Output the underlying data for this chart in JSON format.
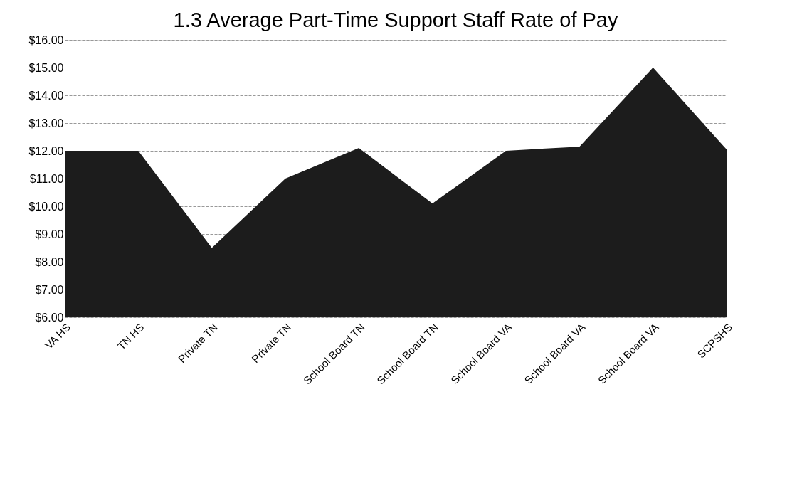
{
  "chart_data": {
    "type": "area",
    "title": "1.3 Average Part-Time Support Staff Rate of Pay",
    "categories": [
      "VA HS",
      "TN HS",
      "Private TN",
      "Private TN",
      "School Board TN",
      "School Board TN",
      "School Board VA",
      "School Board VA",
      "School Board VA",
      "SCPSHS"
    ],
    "series": [
      {
        "color": "#1c1c1c",
        "values": [
          12.0,
          12.0,
          8.5,
          11.0,
          12.1,
          10.1,
          12.0,
          12.15,
          15.0,
          12.05
        ]
      }
    ],
    "ylim": [
      6,
      16
    ],
    "yticks": [
      {
        "value": 6,
        "label": "$6.00"
      },
      {
        "value": 7,
        "label": "$7.00"
      },
      {
        "value": 8,
        "label": "$8.00"
      },
      {
        "value": 9,
        "label": "$9.00"
      },
      {
        "value": 10,
        "label": "$10.00"
      },
      {
        "value": 11,
        "label": "$11.00"
      },
      {
        "value": 12,
        "label": "$12.00"
      },
      {
        "value": 13,
        "label": "$13.00"
      },
      {
        "value": 14,
        "label": "$14.00"
      },
      {
        "value": 15,
        "label": "$15.00"
      },
      {
        "value": 16,
        "label": "$16.00"
      }
    ],
    "grid": "y"
  }
}
